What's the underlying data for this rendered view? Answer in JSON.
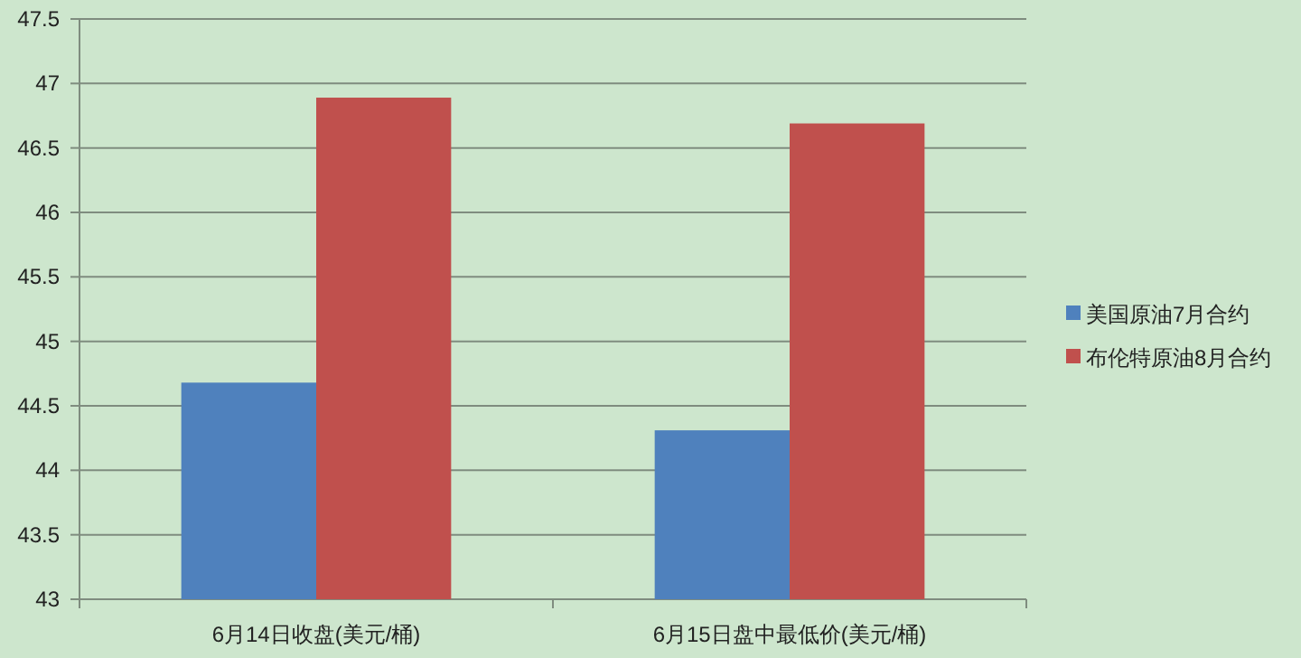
{
  "chart_data": {
    "type": "bar",
    "categories": [
      "6月14日收盘(美元/桶)",
      "6月15日盘中最低价(美元/桶)"
    ],
    "series": [
      {
        "name": "美国原油7月合约",
        "color": "#4f81bd",
        "values": [
          44.68,
          44.31
        ]
      },
      {
        "name": "布伦特原油8月合约",
        "color": "#c0504d",
        "values": [
          46.89,
          46.69
        ]
      }
    ],
    "ylim": [
      43,
      47.5
    ],
    "yticks": [
      43,
      43.5,
      44,
      44.5,
      45,
      45.5,
      46,
      46.5,
      47,
      47.5
    ],
    "grid": "y",
    "legend": "right"
  }
}
